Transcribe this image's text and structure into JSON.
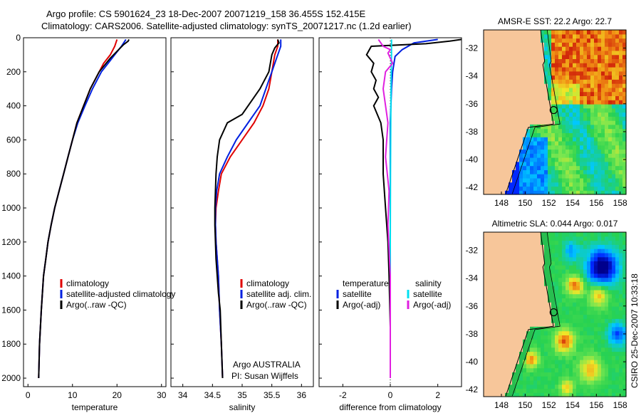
{
  "header": {
    "title_line1": "Argo profile: CS 5901624_23 18-Dec-2007 20071219_158 36.455S 152.415E",
    "title_line2": "Climatology: CARS2006. Satellite-adjusted climatology: synTS_20071217.nc (1.2d earlier)"
  },
  "colors": {
    "climatology": "#e00000",
    "satellite": "#0020e0",
    "argo": "#000000",
    "argo_adj": "#e020e0",
    "satellite_diff": "#00e0f0"
  },
  "chart_data": [
    {
      "type": "line",
      "name": "temperature-profile",
      "xlabel": "temperature",
      "ylabel": "",
      "xlim": [
        -1,
        31
      ],
      "ylim": [
        2050,
        0
      ],
      "xticks": [
        0,
        10,
        20,
        30
      ],
      "yticks": [
        0,
        200,
        400,
        600,
        800,
        1000,
        1200,
        1400,
        1600,
        1800,
        2000
      ],
      "legend": {
        "placement": "lower-right",
        "entries": [
          "climatology",
          "satellite-adjusted climatology",
          "Argo(..raw -QC)"
        ]
      },
      "series": [
        {
          "name": "climatology",
          "color": "#e00000",
          "x": [
            20.0,
            19.5,
            18.5,
            17.0,
            16.0,
            14.0,
            12.5,
            11.0,
            10.0,
            9.0,
            8.0,
            7.0,
            6.0,
            5.2,
            4.5,
            4.0,
            3.5,
            3.0,
            2.6,
            2.4
          ],
          "depth": [
            10,
            50,
            100,
            150,
            200,
            300,
            400,
            500,
            600,
            700,
            800,
            900,
            1000,
            1100,
            1200,
            1300,
            1400,
            1600,
            1800,
            2000
          ]
        },
        {
          "name": "satellite-adjusted climatology",
          "color": "#0020e0",
          "x": [
            22.0,
            21.0,
            19.5,
            18.0,
            16.5,
            14.5,
            12.8,
            11.2,
            10.0,
            9.0,
            8.0,
            7.0,
            6.0,
            5.2,
            4.5,
            4.0,
            3.5,
            3.0,
            2.6,
            2.4
          ],
          "depth": [
            10,
            50,
            100,
            150,
            200,
            300,
            400,
            500,
            600,
            700,
            800,
            900,
            1000,
            1100,
            1200,
            1300,
            1400,
            1600,
            1800,
            2000
          ]
        },
        {
          "name": "Argo(..raw -QC)",
          "color": "#000000",
          "x": [
            22.7,
            22.5,
            21.5,
            20.0,
            18.5,
            16.0,
            15.0,
            14.0,
            12.5,
            11.0,
            10.0,
            9.0,
            8.0,
            7.0,
            6.0,
            5.2,
            4.5,
            4.0,
            3.5,
            3.0,
            2.6,
            2.4
          ],
          "depth": [
            10,
            20,
            40,
            80,
            120,
            200,
            250,
            300,
            400,
            500,
            600,
            700,
            800,
            900,
            1000,
            1100,
            1200,
            1300,
            1400,
            1600,
            1800,
            2000
          ]
        }
      ]
    },
    {
      "type": "line",
      "name": "salinity-profile",
      "xlabel": "salinity",
      "ylabel": "",
      "xlim": [
        33.8,
        36.2
      ],
      "ylim": [
        2050,
        0
      ],
      "xticks": [
        34,
        34.5,
        35,
        35.5,
        36
      ],
      "legend": {
        "placement": "lower-right",
        "entries": [
          "climatology",
          "satellite adj. clim.",
          "Argo(..raw -QC)"
        ]
      },
      "series": [
        {
          "name": "climatology",
          "color": "#e00000",
          "x": [
            35.6,
            35.6,
            35.55,
            35.5,
            35.45,
            35.35,
            35.2,
            35.0,
            34.8,
            34.65,
            34.6,
            34.56,
            34.55,
            34.56,
            34.58,
            34.6,
            34.62,
            34.65,
            34.67
          ],
          "depth": [
            10,
            50,
            100,
            200,
            300,
            400,
            500,
            600,
            700,
            800,
            900,
            1000,
            1100,
            1200,
            1300,
            1400,
            1600,
            1800,
            2000
          ]
        },
        {
          "name": "satellite adj. clim.",
          "color": "#0020e0",
          "x": [
            35.65,
            35.65,
            35.6,
            35.5,
            35.4,
            35.3,
            35.1,
            34.9,
            34.75,
            34.62,
            34.57,
            34.55,
            34.55,
            34.56,
            34.58,
            34.6,
            34.62,
            34.65,
            34.67
          ],
          "depth": [
            10,
            50,
            100,
            200,
            300,
            400,
            500,
            600,
            700,
            800,
            900,
            1000,
            1100,
            1200,
            1300,
            1400,
            1600,
            1800,
            2000
          ]
        },
        {
          "name": "Argo(..raw -QC)",
          "color": "#000000",
          "x": [
            35.6,
            35.62,
            35.55,
            35.5,
            35.45,
            35.3,
            35.0,
            34.75,
            34.62,
            34.58,
            34.56,
            34.55,
            34.54,
            34.54,
            34.55,
            34.56,
            34.58,
            34.6,
            34.63,
            34.65,
            34.67
          ],
          "depth": [
            10,
            30,
            60,
            100,
            200,
            300,
            450,
            500,
            600,
            700,
            800,
            900,
            1000,
            1100,
            1200,
            1300,
            1400,
            1500,
            1600,
            1800,
            2000
          ]
        }
      ]
    },
    {
      "type": "line",
      "name": "difference-profile",
      "xlabel": "difference from climatology",
      "ylabel": "",
      "xlim": [
        -3,
        3
      ],
      "ylim": [
        2050,
        0
      ],
      "xticks": [
        -2,
        0,
        2
      ],
      "legend": {
        "placement": "lower-center",
        "groups": [
          {
            "label": "temperature",
            "entries": [
              "satellite",
              "Argo(-adj)"
            ]
          },
          {
            "label": "salinity",
            "entries": [
              "satellite",
              "Argo(-adj)"
            ]
          }
        ]
      },
      "series": [
        {
          "name": "temperature satellite",
          "color": "#0020e0",
          "x": [
            2.0,
            1.0,
            0.5,
            0.2,
            0.1,
            0.05,
            0.0,
            0.0,
            0.0,
            0.0
          ],
          "depth": [
            10,
            30,
            70,
            110,
            200,
            300,
            500,
            800,
            1200,
            2000
          ]
        },
        {
          "name": "temperature Argo(-adj)",
          "color": "#000000",
          "x": [
            3.0,
            2.5,
            1.5,
            -0.8,
            -1.0,
            -0.7,
            -0.8,
            -0.6,
            -0.7,
            -0.5,
            -0.7,
            -0.4,
            -0.3,
            -0.3,
            -0.2,
            -0.1,
            -0.05,
            0.0,
            0.0
          ],
          "depth": [
            10,
            20,
            35,
            50,
            100,
            150,
            200,
            250,
            300,
            350,
            400,
            500,
            600,
            800,
            1000,
            1200,
            1400,
            1700,
            2000
          ]
        },
        {
          "name": "salinity satellite",
          "color": "#00e0f0",
          "x": [
            0.05,
            0.05,
            0.03,
            0.02,
            0.01,
            0.0,
            0.0,
            0.0
          ],
          "depth": [
            10,
            100,
            300,
            500,
            800,
            1200,
            1600,
            2000
          ]
        },
        {
          "name": "salinity Argo(-adj)",
          "color": "#e020e0",
          "x": [
            -0.5,
            -0.3,
            0.0,
            -0.1,
            0.1,
            -0.2,
            -0.3,
            -0.1,
            -0.2,
            -0.05,
            -0.1,
            0.0,
            0.0
          ],
          "depth": [
            10,
            50,
            70,
            90,
            150,
            200,
            300,
            500,
            700,
            900,
            1100,
            1400,
            2000
          ]
        }
      ]
    },
    {
      "type": "heatmap",
      "name": "sst-map",
      "title": "AMSR-E SST: 22.2 Argo: 22.7",
      "xlim": [
        146.5,
        158.5
      ],
      "ylim": [
        -42.5,
        -30.7
      ],
      "xticks": [
        148,
        150,
        152,
        154,
        156,
        158
      ],
      "yticks": [
        -42,
        -40,
        -38,
        -36,
        -34,
        -32
      ],
      "marker": {
        "lon": 152.4,
        "lat": -36.45
      }
    },
    {
      "type": "heatmap",
      "name": "sla-map",
      "title": "Altimetric SLA: 0.044 Argo: 0.017",
      "xlim": [
        146.5,
        158.5
      ],
      "ylim": [
        -42.5,
        -30.7
      ],
      "xticks": [
        148,
        150,
        152,
        154,
        156,
        158
      ],
      "yticks": [
        -42,
        -40,
        -38,
        -36,
        -34,
        -32
      ],
      "marker": {
        "lon": 152.4,
        "lat": -36.45
      }
    }
  ],
  "footer": {
    "argo_country": "Argo AUSTRALIA",
    "pi": "PI: Susan Wijffels",
    "credit": "CSIRO 25-Dec-2007 10:33:18"
  }
}
